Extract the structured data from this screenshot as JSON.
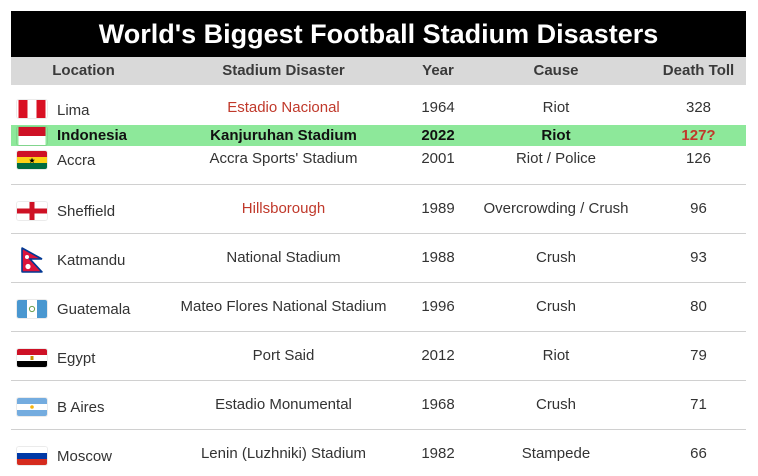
{
  "title": "World's Biggest Football Stadium Disasters",
  "headers": {
    "location": "Location",
    "disaster": "Stadium Disaster",
    "year": "Year",
    "cause": "Cause",
    "toll": "Death Toll"
  },
  "rows": [
    {
      "flag": "peru-flag-icon",
      "location": "Lima",
      "disaster": "Estadio Nacional",
      "year": "1964",
      "cause": "Riot",
      "toll": "328"
    },
    {
      "flag": "indonesia-flag-icon",
      "location": "Indonesia",
      "disaster": "Kanjuruhan Stadium",
      "year": "2022",
      "cause": "Riot",
      "toll": "127?"
    },
    {
      "flag": "ghana-flag-icon",
      "location": "Accra",
      "disaster": "Accra Sports' Stadium",
      "year": "2001",
      "cause": "Riot / Police",
      "toll": "126"
    },
    {
      "flag": "england-flag-icon",
      "location": "Sheffield",
      "disaster": "Hillsborough",
      "year": "1989",
      "cause": "Overcrowding / Crush",
      "toll": "96"
    },
    {
      "flag": "nepal-flag-icon",
      "location": "Katmandu",
      "disaster": "National Stadium",
      "year": "1988",
      "cause": "Crush",
      "toll": "93"
    },
    {
      "flag": "guatemala-flag-icon",
      "location": "Guatemala",
      "disaster": "Mateo Flores National Stadium",
      "year": "1996",
      "cause": "Crush",
      "toll": "80"
    },
    {
      "flag": "egypt-flag-icon",
      "location": "Egypt",
      "disaster": "Port Said",
      "year": "2012",
      "cause": "Riot",
      "toll": "79"
    },
    {
      "flag": "argentina-flag-icon",
      "location": "B Aires",
      "disaster": "Estadio Monumental",
      "year": "1968",
      "cause": "Crush",
      "toll": "71"
    },
    {
      "flag": "russia-flag-icon",
      "location": "Moscow",
      "disaster": "Lenin (Luzhniki) Stadium",
      "year": "1982",
      "cause": "Stampede",
      "toll": "66"
    }
  ],
  "colors": {
    "title_bg": "#000000",
    "header_bg": "#d9d9d9",
    "highlight_row": "#8de89a",
    "link_text": "#c0392b"
  }
}
